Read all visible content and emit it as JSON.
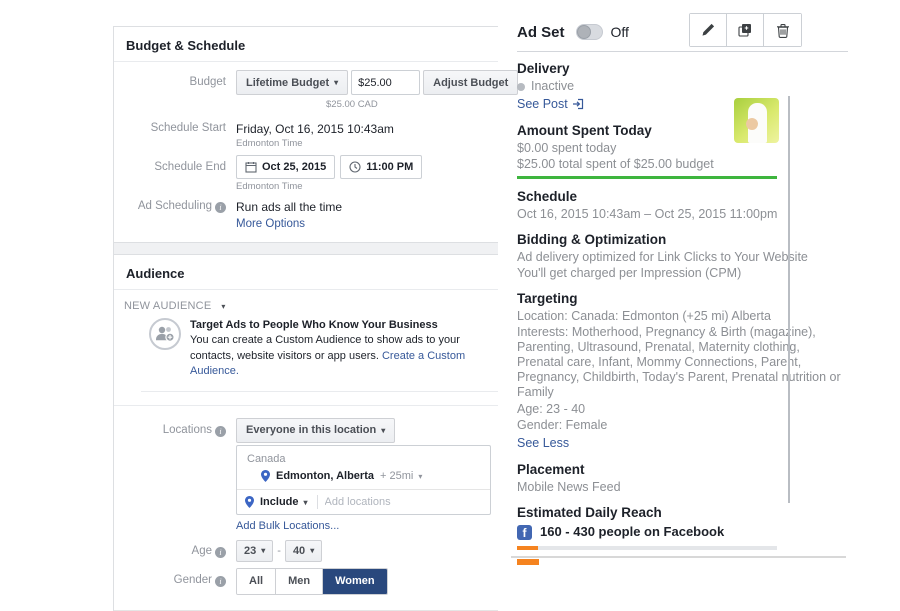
{
  "budget_schedule": {
    "title": "Budget & Schedule",
    "budget_label": "Budget",
    "budget_type": "Lifetime Budget",
    "budget_amount": "$25.00",
    "adjust_budget": "Adjust Budget",
    "budget_note": "$25.00 CAD",
    "schedule_start_label": "Schedule Start",
    "schedule_start_value": "Friday, Oct 16, 2015 10:43am",
    "timezone": "Edmonton Time",
    "schedule_end_label": "Schedule End",
    "schedule_end_date": "Oct 25, 2015",
    "schedule_end_time": "11:00 PM",
    "ad_scheduling_label": "Ad Scheduling",
    "ad_scheduling_value": "Run ads all the time",
    "more_options": "More Options"
  },
  "audience": {
    "title": "Audience",
    "selector": "NEW AUDIENCE",
    "promo_title": "Target Ads to People Who Know Your Business",
    "promo_text": "You can create a Custom Audience to show ads to your contacts, website visitors or app users.",
    "promo_link": "Create a Custom Audience.",
    "locations_label": "Locations",
    "locations_mode": "Everyone in this location",
    "country": "Canada",
    "city": "Edmonton, Alberta",
    "radius": "+ 25mi",
    "include": "Include",
    "add_locations_placeholder": "Add locations",
    "add_bulk_locations": "Add Bulk Locations...",
    "age_label": "Age",
    "age_min": "23",
    "age_separator": "-",
    "age_max": "40",
    "gender_label": "Gender",
    "gender_options": [
      "All",
      "Men",
      "Women"
    ],
    "gender_selected": "Women"
  },
  "ad_set_panel": {
    "title": "Ad Set",
    "toggle_state": "Off",
    "delivery": {
      "title": "Delivery",
      "status": "Inactive",
      "see_post": "See Post"
    },
    "amount_spent": {
      "title": "Amount Spent Today",
      "today": "$0.00 spent today",
      "total": "$25.00 total spent of $25.00 budget",
      "progress_pct": 100
    },
    "schedule": {
      "title": "Schedule",
      "value": "Oct 16, 2015 10:43am – Oct 25, 2015 11:00pm"
    },
    "bidding": {
      "title": "Bidding & Optimization",
      "line1": "Ad delivery optimized for Link Clicks to Your Website",
      "line2": "You'll get charged per Impression (CPM)"
    },
    "targeting": {
      "title": "Targeting",
      "location": "Location: Canada: Edmonton (+25 mi) Alberta",
      "interests": "Interests: Motherhood, Pregnancy & Birth (magazine), Parenting, Ultrasound, Prenatal, Maternity clothing, Prenatal care, Infant, Mommy Connections, Parent, Pregnancy, Childbirth, Today's Parent, Prenatal nutrition or Family",
      "age": "Age: 23 - 40",
      "gender": "Gender: Female",
      "see_less": "See Less"
    },
    "placement": {
      "title": "Placement",
      "value": "Mobile News Feed"
    },
    "reach": {
      "title": "Estimated Daily Reach",
      "value": "160 - 430 people on Facebook",
      "progress_pct": 8
    }
  },
  "colors": {
    "link_blue": "#365899",
    "facebook_blue": "#4267b2",
    "selected_navy": "#29487d",
    "progress_green": "#3eb53e",
    "progress_orange": "#f5831f",
    "pin_blue": "#3c66c4"
  }
}
